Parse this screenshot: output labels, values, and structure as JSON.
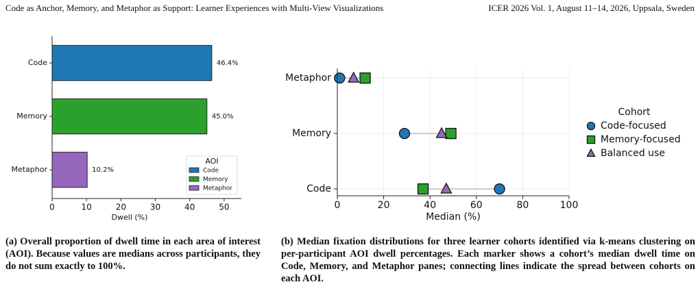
{
  "header": {
    "left": "Code as Anchor, Memory, and Metaphor as Support: Learner Experiences with Multi-View Visualizations",
    "right": "ICER 2026 Vol. 1, August 11–14, 2026, Uppsala, Sweden"
  },
  "chart_data": [
    {
      "type": "bar",
      "orientation": "horizontal",
      "xlabel": "Dwell (%)",
      "categories": [
        "Code",
        "Memory",
        "Metaphor"
      ],
      "values": [
        46.4,
        45.0,
        10.2
      ],
      "value_labels": [
        "46.4%",
        "45.0%",
        "10.2%"
      ],
      "colors": [
        "#1f77b4",
        "#2ca02c",
        "#9467bd"
      ],
      "xlim": [
        0,
        55
      ],
      "xticks": [
        0,
        10,
        20,
        30,
        40,
        50
      ],
      "legend": {
        "title": "AOI",
        "corner": "lower right"
      }
    },
    {
      "type": "dot",
      "xlabel": "Median (%)",
      "categories": [
        "Metaphor",
        "Memory",
        "Code"
      ],
      "series": [
        {
          "name": "Code-focused",
          "color": "#1f77b4",
          "marker": "circle",
          "values": [
            1,
            29,
            70
          ]
        },
        {
          "name": "Memory-focused",
          "color": "#2ca02c",
          "marker": "square",
          "values": [
            12,
            49,
            37
          ]
        },
        {
          "name": "Balanced use",
          "color": "#9467bd",
          "marker": "triangle",
          "values": [
            7,
            45,
            47
          ]
        }
      ],
      "xlim": [
        0,
        100
      ],
      "xticks": [
        0,
        20,
        40,
        60,
        80,
        100
      ],
      "grid": true,
      "legend": {
        "title": "Cohort",
        "corner": "outside right"
      }
    }
  ],
  "captions": [
    "(a) Overall proportion of dwell time in each area of interest (AOI). Because values are medians across participants, they do not sum exactly to 100%.",
    "(b) Median fixation distributions for three learner cohorts identified via k-means clustering on per-participant AOI dwell percentages. Each marker shows a cohort’s median dwell time on Code, Memory, and Metaphor panes; connecting lines indicate the spread between cohorts on each AOI."
  ]
}
